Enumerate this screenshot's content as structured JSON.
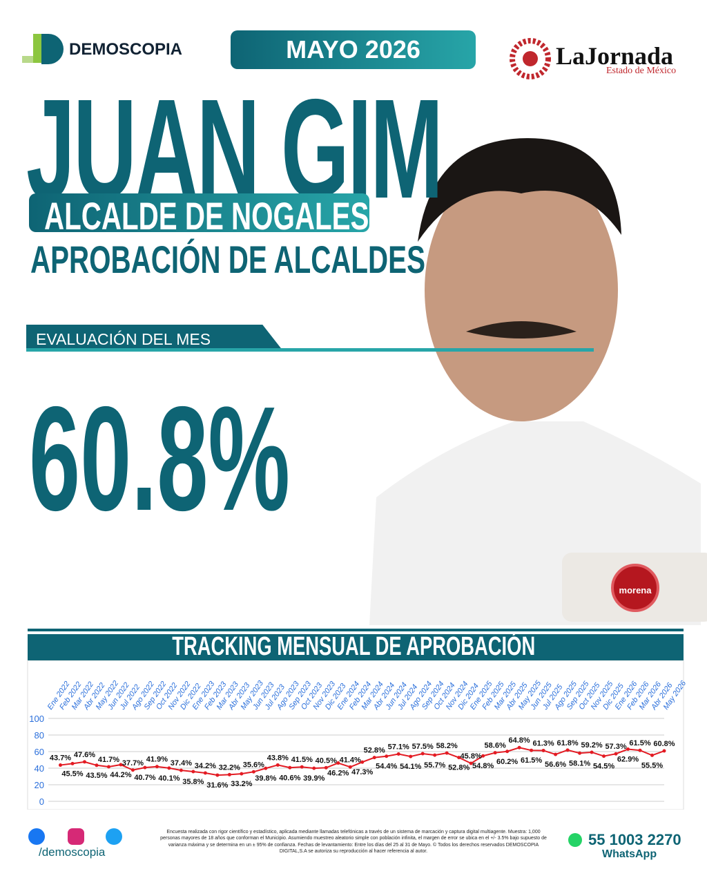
{
  "header": {
    "brand": "DEMOSCOPIA",
    "date": "MAYO 2026",
    "partner": "LaJornada",
    "partner_sub": "Estado de México"
  },
  "name": "JUAN GIM",
  "role": "ALCALDE DE NOGALES",
  "subtitle": "APROBACIÓN DE ALCALDES",
  "evaluation": {
    "label": "EVALUACIÓN DEL MES",
    "value": "60.8%"
  },
  "party": "morena",
  "chart_data": {
    "type": "line",
    "title": "TRACKING MENSUAL DE APROBACIÓN",
    "color": "#e31b23",
    "grid": true,
    "categories": [
      "Ene 2022",
      "Feb 2022",
      "Mar 2022",
      "Abr 2022",
      "May 2022",
      "Jun 2022",
      "Jul 2022",
      "Ago 2022",
      "Sep 2022",
      "Oct 2022",
      "Nov 2022",
      "Dic 2022",
      "Ene 2023",
      "Feb 2023",
      "Mar 2023",
      "Abr 2023",
      "May 2023",
      "Jun 2023",
      "Jul 2023",
      "Ago 2023",
      "Sep 2023",
      "Oct 2023",
      "Nov 2023",
      "Dic 2023",
      "Ene 2024",
      "Feb 2024",
      "Mar 2024",
      "Abr 2024",
      "Jun 2024",
      "Jul 2024",
      "Ago 2024",
      "Sep 2024",
      "Oct 2024",
      "Nov 2024",
      "Dic 2024",
      "Ene 2025",
      "Feb 2025",
      "Mar 2025",
      "Abr 2025",
      "May 2025",
      "Jun 2025",
      "Jul 2025",
      "Ago 2025",
      "Sep 2025",
      "Oct 2025",
      "Nov 2025",
      "Dic 2025",
      "Ene 2026",
      "Feb 2026",
      "Mar 2026",
      "Abr 2026",
      "May 2026"
    ],
    "values": [
      null,
      43.7,
      45.5,
      47.6,
      43.5,
      41.7,
      44.2,
      37.7,
      40.7,
      41.9,
      40.1,
      37.4,
      35.8,
      34.2,
      31.6,
      32.2,
      33.2,
      35.6,
      39.8,
      43.8,
      40.6,
      41.5,
      39.9,
      40.5,
      46.2,
      41.4,
      47.3,
      52.8,
      54.4,
      57.1,
      54.1,
      57.5,
      55.7,
      58.2,
      52.8,
      45.8,
      54.8,
      58.6,
      60.2,
      64.8,
      61.5,
      61.3,
      56.6,
      61.8,
      58.1,
      59.2,
      54.5,
      57.3,
      62.9,
      61.5,
      55.5,
      60.8
    ],
    "value_labels": [
      null,
      "43.7%",
      "45.5%",
      "47.6%",
      "43.5%",
      "41.7%",
      "44.2%",
      "37.7%",
      "40.7%",
      "41.9%",
      "40.1%",
      "37.4%",
      "35.8%",
      "34.2%",
      "31.6%",
      "32.2%",
      "33.2%",
      "35.6%",
      "39.8%",
      "43.8%",
      "40.6%",
      "41.5%",
      "39.9%",
      "40.5%",
      "46.2%",
      "41.4%",
      "47.3%",
      "52.8%",
      "54.4%",
      "57.1%",
      "54.1%",
      "57.5%",
      "55.7%",
      "58.2%",
      "52.8%",
      "45.8%",
      "54.8%",
      "58.6%",
      "60.2%",
      "64.8%",
      "61.5%",
      "61.3%",
      "56.6%",
      "61.8%",
      "58.1%",
      "59.2%",
      "54.5%",
      "57.3%",
      "62.9%",
      "61.5%",
      "55.5%",
      "60.8%"
    ],
    "ylim": [
      0,
      100
    ],
    "yticks": [
      0,
      20,
      40,
      60,
      80,
      100
    ]
  },
  "footer": {
    "social": "/demoscopia",
    "disclaimer": "Encuesta realizada con rigor científico y estadístico, aplicada mediante llamadas telefónicas a través de un sistema de marcación y captura digital multiagente. Muestra: 1,000 personas mayores de 18 años que conforman el Municipio. Asumiendo muestreo aleatorio simple con población infinita, el margen de error se ubica en el +/- 3.5% bajo supuesto de varianza máxima y se determina en un ± 95% de confianza. Fechas de levantamiento: Entre los días del 25 al 31 de Mayo. © Todos los derechos reservados DEMOSCOPIA DIGITAL,S.A se autoriza su reproducción al hacer referencia al autor.",
    "phone": "55 1003 2270",
    "phone_label": "WhatsApp"
  }
}
